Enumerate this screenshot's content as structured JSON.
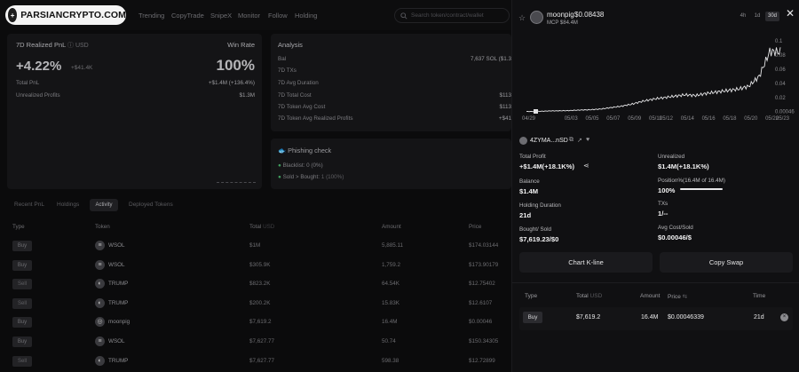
{
  "brand": {
    "logo_text": "PARSIANCRYPTO.COM",
    "logo_badge": "+"
  },
  "nav": {
    "items": [
      "Trending",
      "CopyTrade",
      "SnipeX",
      "Monitor",
      "Follow",
      "Holding"
    ]
  },
  "search": {
    "placeholder": "Search token/contract/wallet"
  },
  "pnl_card": {
    "title": "7D Realized PnL",
    "unit": "USD",
    "winrate_label": "Win Rate",
    "pnl_pct": "+4.22%",
    "pnl_usd": "+$41.4K",
    "winrate": "100%",
    "total_pnl_label": "Total PnL",
    "total_pnl_value": "+$1.4M (+136.4%)",
    "unrealized_label": "Unrealized Profits",
    "unrealized_value": "$1.3M"
  },
  "analysis": {
    "title": "Analysis",
    "rows": [
      {
        "label": "Bal",
        "value": "7,637 SOL ($1.3"
      },
      {
        "label": "7D TXs",
        "value": ""
      },
      {
        "label": "7D Avg Duration",
        "value": ""
      },
      {
        "label": "7D Total Cost",
        "value": "$113"
      },
      {
        "label": "7D Token Avg Cost",
        "value": "$113"
      },
      {
        "label": "7D Token Avg Realized Profits",
        "value": "+$41"
      }
    ]
  },
  "phishing": {
    "title": "Phishing check",
    "blacklist": "Blacklist: 0 (0%)",
    "sold_label": "Sold > Bought:",
    "sold_value": "1 (100%)"
  },
  "tabs": [
    "Recent PnL",
    "Holdings",
    "Activity",
    "Deployed Tokens"
  ],
  "table": {
    "headers": {
      "type": "Type",
      "token": "Token",
      "total": "Total",
      "total_unit": "USD",
      "amount": "Amount",
      "price": "Price"
    },
    "rows": [
      {
        "type": "Buy",
        "token": "WSOL",
        "total": "$1M",
        "amount": "5,885.11",
        "price": "$174.03144"
      },
      {
        "type": "Buy",
        "token": "WSOL",
        "total": "$305.9K",
        "amount": "1,759.2",
        "price": "$173.90179"
      },
      {
        "type": "Sell",
        "token": "TRUMP",
        "total": "$823.2K",
        "amount": "64.54K",
        "price": "$12.75402"
      },
      {
        "type": "Sell",
        "token": "TRUMP",
        "total": "$200.2K",
        "amount": "15.83K",
        "price": "$12.6107"
      },
      {
        "type": "Buy",
        "token": "moonpig",
        "total": "$7,619.2",
        "amount": "16.4M",
        "price": "$0.00046"
      },
      {
        "type": "Buy",
        "token": "WSOL",
        "total": "$7,627.77",
        "amount": "50.74",
        "price": "$150.34305"
      },
      {
        "type": "Sell",
        "token": "TRUMP",
        "total": "$7,627.77",
        "amount": "598.38",
        "price": "$12.72899"
      }
    ]
  },
  "panel": {
    "token_name": "moonpig",
    "token_price": "$0.08438",
    "mcp": "MCP $84.4M",
    "ranges": [
      "4h",
      "1d",
      "30d"
    ],
    "active_range": "30d",
    "wallet": "4ZYMA...nSD",
    "total_profit_label": "Total Profit",
    "total_profit_value": "+$1.4M(+18.1K%)",
    "unrealized_label": "Unrealized",
    "unrealized_value": "$1.4M(+18.1K%)",
    "balance_label": "Balance",
    "balance_value": "$1.4M",
    "position_label": "Position%(16.4M of 16.4M)",
    "position_value": "100%",
    "holding_label": "Holding Duration",
    "holding_value": "21d",
    "txs_label": "TXs",
    "txs_value": "1/--",
    "bought_label": "Bought/ Sold",
    "bought_value": "$7,619.23/$0",
    "avgcost_label": "Avg Cost/Sold",
    "avgcost_value": "$0.00046/$",
    "btn_kline": "Chart K-line",
    "btn_copy": "Copy Swap",
    "th_type": "Type",
    "th_total": "Total",
    "th_total_unit": "USD",
    "th_amount": "Amount",
    "th_price": "Price",
    "th_time": "Time",
    "row_type": "Buy",
    "row_total": "$7,619.2",
    "row_amount": "16.4M",
    "row_price": "$0.00046339",
    "row_time": "21d"
  },
  "chart_data": {
    "type": "line",
    "x": [
      "04/29",
      "04/30",
      "05/01",
      "05/02",
      "05/03",
      "05/04",
      "05/05",
      "05/06",
      "05/07",
      "05/08",
      "05/09",
      "05/10",
      "05/11",
      "05/12",
      "05/13",
      "05/14",
      "05/15",
      "05/16",
      "05/17",
      "05/18",
      "05/19",
      "05/20",
      "05/21",
      "05/22",
      "05/23"
    ],
    "x_tick_labels": [
      "04/29",
      "05/03",
      "05/05",
      "05/07",
      "05/09",
      "05/11",
      "05/12",
      "05/14",
      "05/16",
      "05/18",
      "05/20",
      "05/22",
      "05/23"
    ],
    "y_tick_labels": [
      "0.1",
      "0.08",
      "0.06",
      "0.04",
      "0.02",
      "0.00046"
    ],
    "ylim": [
      0,
      0.11
    ],
    "values": [
      0.0005,
      0.0006,
      0.0012,
      0.0015,
      0.0018,
      0.0025,
      0.003,
      0.004,
      0.006,
      0.008,
      0.011,
      0.015,
      0.018,
      0.02,
      0.022,
      0.024,
      0.023,
      0.026,
      0.028,
      0.03,
      0.032,
      0.036,
      0.05,
      0.085,
      0.08438
    ],
    "color": "#e6e6e8"
  }
}
